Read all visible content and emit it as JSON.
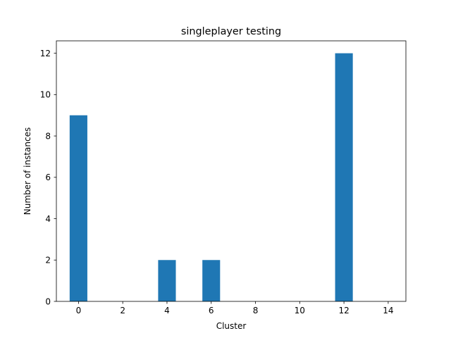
{
  "chart_data": {
    "type": "bar",
    "title": "singleplayer testing",
    "xlabel": "Cluster",
    "ylabel": "Number of instances",
    "x": [
      0,
      4,
      6,
      12
    ],
    "values": [
      9,
      2,
      2,
      12
    ],
    "bar_width": 0.8,
    "xlim": [
      -1.0,
      14.8
    ],
    "ylim": [
      0,
      12.6
    ],
    "xticks": [
      0,
      2,
      4,
      6,
      8,
      10,
      12,
      14
    ],
    "yticks": [
      0,
      2,
      4,
      6,
      8,
      10,
      12
    ],
    "grid": false,
    "bar_color": "#1f77b4"
  }
}
